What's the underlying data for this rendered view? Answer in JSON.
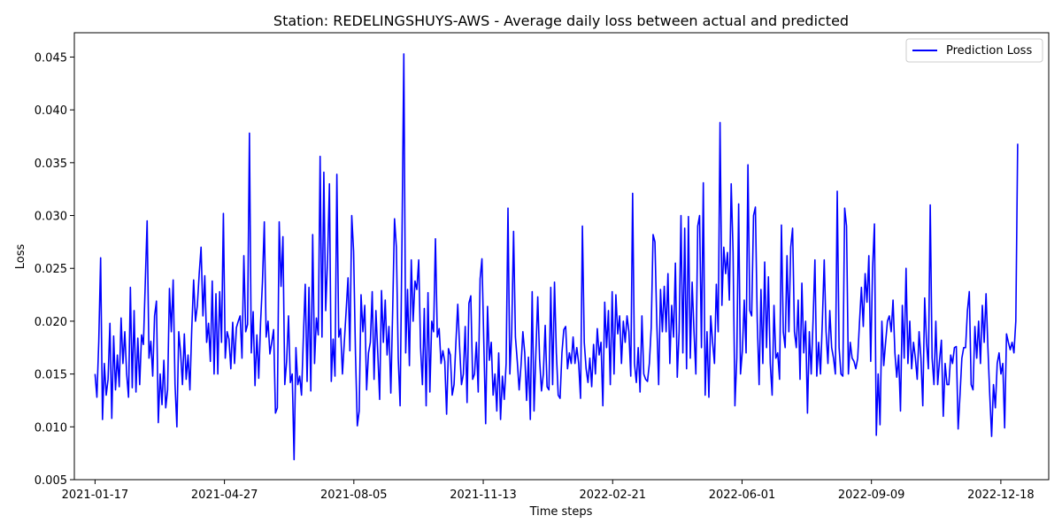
{
  "chart_data": {
    "type": "line",
    "title": "Station: REDELINGSHUYS-AWS - Average daily loss between actual and predicted",
    "xlabel": "Time steps",
    "ylabel": "Loss",
    "x_start": "2021-01-17",
    "x_end": "2022-12-31",
    "xlim": [
      "2021-01-01",
      "2023-01-24"
    ],
    "ylim": [
      0.005,
      0.0473
    ],
    "x_ticks": [
      "2021-01-17",
      "2021-04-27",
      "2021-08-05",
      "2021-11-13",
      "2022-02-21",
      "2022-06-01",
      "2022-09-09",
      "2022-12-18"
    ],
    "y_ticks": [
      "0.005",
      "0.010",
      "0.015",
      "0.020",
      "0.025",
      "0.030",
      "0.035",
      "0.040",
      "0.045"
    ],
    "legend": {
      "position": "top-right",
      "entries": [
        "Prediction Loss"
      ]
    },
    "grid": false,
    "series": [
      {
        "name": "Prediction Loss",
        "color": "#0000ff",
        "values": [
          0.015,
          0.0128,
          0.0181,
          0.026,
          0.0107,
          0.016,
          0.013,
          0.0145,
          0.0198,
          0.0108,
          0.0186,
          0.0135,
          0.0168,
          0.0138,
          0.0203,
          0.016,
          0.019,
          0.015,
          0.0128,
          0.0232,
          0.0137,
          0.021,
          0.0133,
          0.0184,
          0.014,
          0.0187,
          0.0178,
          0.0236,
          0.0295,
          0.0165,
          0.0181,
          0.0148,
          0.0205,
          0.0219,
          0.0104,
          0.015,
          0.0121,
          0.0163,
          0.0118,
          0.0135,
          0.0231,
          0.019,
          0.0239,
          0.014,
          0.01,
          0.019,
          0.017,
          0.014,
          0.0188,
          0.0145,
          0.0168,
          0.0135,
          0.0193,
          0.0239,
          0.02,
          0.0215,
          0.0245,
          0.027,
          0.0205,
          0.0243,
          0.018,
          0.0198,
          0.0162,
          0.0238,
          0.015,
          0.0226,
          0.015,
          0.0228,
          0.018,
          0.0302,
          0.0165,
          0.019,
          0.0183,
          0.0155,
          0.0199,
          0.016,
          0.0194,
          0.02,
          0.0205,
          0.0165,
          0.0262,
          0.019,
          0.0197,
          0.0378,
          0.017,
          0.0209,
          0.0139,
          0.0187,
          0.0146,
          0.0199,
          0.0237,
          0.0294,
          0.0185,
          0.02,
          0.0169,
          0.018,
          0.0192,
          0.0113,
          0.0118,
          0.0294,
          0.0233,
          0.028,
          0.014,
          0.0162,
          0.0205,
          0.0142,
          0.015,
          0.0069,
          0.0175,
          0.014,
          0.0148,
          0.013,
          0.0185,
          0.0235,
          0.0143,
          0.0232,
          0.0134,
          0.0282,
          0.016,
          0.0203,
          0.0187,
          0.0356,
          0.0185,
          0.0341,
          0.021,
          0.0258,
          0.033,
          0.0143,
          0.0183,
          0.0148,
          0.0339,
          0.0185,
          0.0193,
          0.015,
          0.018,
          0.021,
          0.0241,
          0.0172,
          0.03,
          0.0266,
          0.017,
          0.0101,
          0.0115,
          0.0225,
          0.019,
          0.0215,
          0.0135,
          0.017,
          0.018,
          0.0228,
          0.0145,
          0.021,
          0.017,
          0.0126,
          0.0229,
          0.018,
          0.022,
          0.0168,
          0.0195,
          0.0132,
          0.021,
          0.0297,
          0.027,
          0.0165,
          0.012,
          0.0275,
          0.0453,
          0.017,
          0.023,
          0.0158,
          0.0258,
          0.02,
          0.0238,
          0.023,
          0.0258,
          0.0175,
          0.014,
          0.0212,
          0.012,
          0.0227,
          0.0133,
          0.02,
          0.019,
          0.0278,
          0.0185,
          0.0193,
          0.016,
          0.0172,
          0.0162,
          0.0112,
          0.0174,
          0.0168,
          0.013,
          0.014,
          0.018,
          0.0216,
          0.0175,
          0.014,
          0.015,
          0.0195,
          0.0123,
          0.0217,
          0.0224,
          0.0145,
          0.015,
          0.018,
          0.0133,
          0.024,
          0.0259,
          0.018,
          0.0103,
          0.0214,
          0.0163,
          0.018,
          0.013,
          0.015,
          0.0115,
          0.017,
          0.0107,
          0.0148,
          0.0126,
          0.016,
          0.0307,
          0.015,
          0.019,
          0.0285,
          0.0185,
          0.0162,
          0.0135,
          0.0158,
          0.019,
          0.017,
          0.0125,
          0.0166,
          0.0107,
          0.0228,
          0.0115,
          0.017,
          0.0223,
          0.0164,
          0.0134,
          0.015,
          0.0196,
          0.0138,
          0.0135,
          0.0232,
          0.014,
          0.0237,
          0.017,
          0.013,
          0.0127,
          0.017,
          0.0192,
          0.0195,
          0.0155,
          0.017,
          0.016,
          0.0185,
          0.016,
          0.0175,
          0.016,
          0.0127,
          0.029,
          0.018,
          0.0155,
          0.0142,
          0.0165,
          0.0138,
          0.0178,
          0.015,
          0.0193,
          0.0168,
          0.018,
          0.012,
          0.0218,
          0.0175,
          0.021,
          0.014,
          0.0228,
          0.015,
          0.0225,
          0.0188,
          0.0205,
          0.016,
          0.02,
          0.018,
          0.0205,
          0.019,
          0.0148,
          0.0321,
          0.016,
          0.0142,
          0.0175,
          0.0133,
          0.0205,
          0.015,
          0.0145,
          0.0143,
          0.016,
          0.0194,
          0.0282,
          0.0275,
          0.0198,
          0.014,
          0.023,
          0.019,
          0.0233,
          0.019,
          0.0245,
          0.016,
          0.0215,
          0.0185,
          0.0255,
          0.0147,
          0.019,
          0.03,
          0.017,
          0.0288,
          0.0155,
          0.0299,
          0.0165,
          0.0237,
          0.019,
          0.015,
          0.029,
          0.03,
          0.0175,
          0.0331,
          0.013,
          0.019,
          0.0128,
          0.0205,
          0.018,
          0.016,
          0.0235,
          0.019,
          0.0388,
          0.0215,
          0.027,
          0.0245,
          0.0265,
          0.022,
          0.033,
          0.0265,
          0.012,
          0.0165,
          0.0311,
          0.015,
          0.0172,
          0.022,
          0.017,
          0.0348,
          0.021,
          0.0205,
          0.03,
          0.0308,
          0.02,
          0.014,
          0.023,
          0.016,
          0.0256,
          0.0175,
          0.0242,
          0.016,
          0.013,
          0.0215,
          0.0165,
          0.017,
          0.0145,
          0.0291,
          0.019,
          0.0175,
          0.0262,
          0.019,
          0.027,
          0.0288,
          0.019,
          0.0175,
          0.022,
          0.0145,
          0.0236,
          0.017,
          0.02,
          0.0113,
          0.019,
          0.015,
          0.02,
          0.0258,
          0.0148,
          0.018,
          0.015,
          0.02,
          0.0258,
          0.019,
          0.016,
          0.021,
          0.0175,
          0.0165,
          0.015,
          0.0323,
          0.0175,
          0.015,
          0.0148,
          0.0307,
          0.029,
          0.015,
          0.018,
          0.0165,
          0.0162,
          0.0155,
          0.0165,
          0.02,
          0.0232,
          0.0195,
          0.0245,
          0.0218,
          0.0262,
          0.0162,
          0.025,
          0.0292,
          0.0092,
          0.015,
          0.0102,
          0.02,
          0.0158,
          0.018,
          0.02,
          0.0205,
          0.019,
          0.022,
          0.017,
          0.0147,
          0.0168,
          0.0115,
          0.0215,
          0.0165,
          0.025,
          0.016,
          0.02,
          0.0155,
          0.018,
          0.0165,
          0.0145,
          0.019,
          0.0165,
          0.012,
          0.0222,
          0.018,
          0.0155,
          0.031,
          0.0165,
          0.014,
          0.02,
          0.014,
          0.0163,
          0.0182,
          0.011,
          0.016,
          0.014,
          0.014,
          0.0168,
          0.016,
          0.0175,
          0.0176,
          0.0098,
          0.013,
          0.0165,
          0.0175,
          0.0175,
          0.021,
          0.0228,
          0.014,
          0.0135,
          0.0195,
          0.0165,
          0.02,
          0.016,
          0.0215,
          0.018,
          0.0226,
          0.0175,
          0.013,
          0.0091,
          0.014,
          0.0118,
          0.016,
          0.017,
          0.015,
          0.016,
          0.0099,
          0.0188,
          0.018,
          0.0173,
          0.018,
          0.017,
          0.02,
          0.0368
        ]
      }
    ]
  }
}
